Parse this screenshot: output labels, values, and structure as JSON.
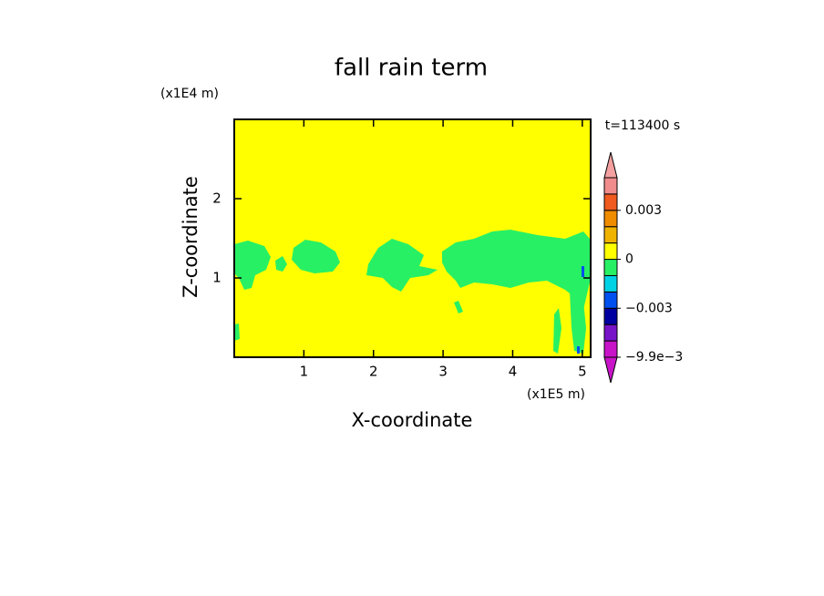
{
  "chart_data": {
    "type": "contour",
    "title": "fall rain term",
    "x_label": "X-coordinate",
    "y_label": "Z-coordinate",
    "x_unit": "(x1E5 m)",
    "y_unit": "(x1E4 m)",
    "annotation": "t=113400 s",
    "xlim": [
      0,
      5.12
    ],
    "xticks": [
      1,
      2,
      3,
      4,
      5
    ],
    "ylim": [
      0,
      3
    ],
    "yticks": [
      1,
      2
    ],
    "colorbar": {
      "levels": [
        -0.0099,
        -0.007,
        -0.004,
        -0.003,
        -0.002,
        -0.001,
        0,
        0.001,
        0.002,
        0.003,
        0.004,
        0.005
      ],
      "colors": [
        "#c814c8",
        "#7814c8",
        "#0000a0",
        "#0050f0",
        "#00d2e6",
        "#28f064",
        "#ffff00",
        "#f0b400",
        "#f08c00",
        "#f05a1e",
        "#f08c8c"
      ],
      "extend_colors": [
        "#c814c8",
        "#f4a0a0"
      ],
      "ticks": [
        0.003,
        0,
        {
          "value": -0.003,
          "label": "−0.003"
        },
        {
          "value": -0.0099,
          "label": "−9.9e−3"
        }
      ]
    }
  }
}
